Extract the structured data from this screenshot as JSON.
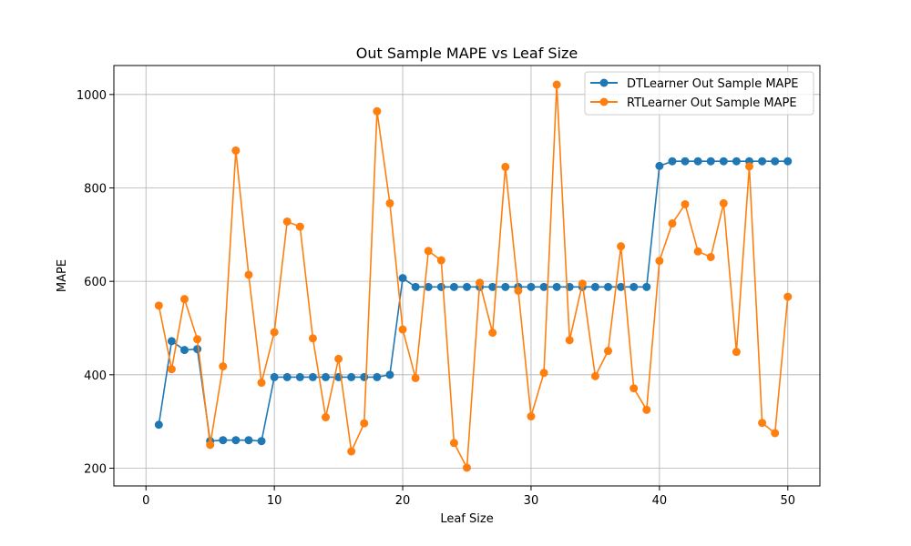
{
  "chart_data": {
    "type": "line",
    "title": "Out Sample MAPE vs Leaf Size",
    "xlabel": "Leaf Size",
    "ylabel": "MAPE",
    "xlim": [
      -2.5,
      52.5
    ],
    "ylim": [
      162,
      1062
    ],
    "xticks": [
      0,
      10,
      20,
      30,
      40,
      50
    ],
    "yticks": [
      200,
      400,
      600,
      800,
      1000
    ],
    "grid": true,
    "legend_position": "upper-right",
    "x": [
      1,
      2,
      3,
      4,
      5,
      6,
      7,
      8,
      9,
      10,
      11,
      12,
      13,
      14,
      15,
      16,
      17,
      18,
      19,
      20,
      21,
      22,
      23,
      24,
      25,
      26,
      27,
      28,
      29,
      30,
      31,
      32,
      33,
      34,
      35,
      36,
      37,
      38,
      39,
      40,
      41,
      42,
      43,
      44,
      45,
      46,
      47,
      48,
      49,
      50
    ],
    "series": [
      {
        "name": "DTLearner Out Sample MAPE",
        "color": "#1f77b4",
        "values": [
          293,
          472,
          453,
          455,
          258,
          260,
          260,
          260,
          258,
          395,
          395,
          395,
          395,
          395,
          395,
          395,
          395,
          395,
          400,
          607,
          588,
          588,
          588,
          588,
          588,
          588,
          588,
          588,
          588,
          588,
          588,
          588,
          588,
          588,
          588,
          588,
          588,
          588,
          588,
          847,
          857,
          857,
          857,
          857,
          857,
          857,
          857,
          857,
          857,
          857
        ]
      },
      {
        "name": "RTLearner Out Sample MAPE",
        "color": "#ff7f0e",
        "values": [
          548,
          412,
          562,
          476,
          250,
          418,
          880,
          614,
          383,
          491,
          728,
          717,
          478,
          309,
          434,
          236,
          296,
          964,
          767,
          497,
          393,
          665,
          645,
          254,
          201,
          597,
          490,
          845,
          580,
          311,
          404,
          1021,
          474,
          595,
          397,
          451,
          675,
          371,
          325,
          644,
          724,
          765,
          664,
          652,
          767,
          449,
          846,
          297,
          275,
          567
        ]
      }
    ]
  }
}
